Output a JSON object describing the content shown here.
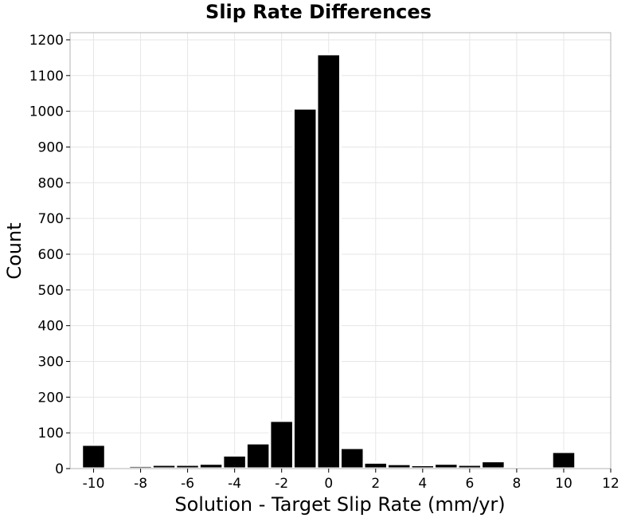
{
  "chart_data": {
    "type": "bar",
    "title": "Slip Rate Differences",
    "xlabel": "Solution - Target Slip Rate (mm/yr)",
    "ylabel": "Count",
    "xlim": [
      -11,
      12
    ],
    "ylim": [
      0,
      1220
    ],
    "bin_width": 1,
    "x": [
      -10,
      -9,
      -8,
      -7,
      -6,
      -5,
      -4,
      -3,
      -2,
      -1,
      0,
      1,
      2,
      3,
      4,
      5,
      6,
      7,
      8,
      9,
      10
    ],
    "values": [
      67,
      4,
      8,
      11,
      11,
      14,
      37,
      71,
      134,
      1008,
      1160,
      58,
      17,
      13,
      10,
      14,
      11,
      21,
      2,
      4,
      47
    ],
    "xticks": [
      "-10",
      "-8",
      "-6",
      "-4",
      "-2",
      "0",
      "2",
      "4",
      "6",
      "8",
      "10",
      "12"
    ],
    "xtick_values": [
      -10,
      -8,
      -6,
      -4,
      -2,
      0,
      2,
      4,
      6,
      8,
      10,
      12
    ],
    "yticks": [
      "0",
      "100",
      "200",
      "300",
      "400",
      "500",
      "600",
      "700",
      "800",
      "900",
      "1000",
      "1100",
      "1200"
    ],
    "ytick_values": [
      0,
      100,
      200,
      300,
      400,
      500,
      600,
      700,
      800,
      900,
      1000,
      1100,
      1200
    ],
    "grid": true,
    "legend": "none",
    "bar_color": "#000000",
    "bar_edge_color": "#ffffff",
    "grid_color": "#e6e6e6",
    "frame_color": "#b3b3b3"
  }
}
